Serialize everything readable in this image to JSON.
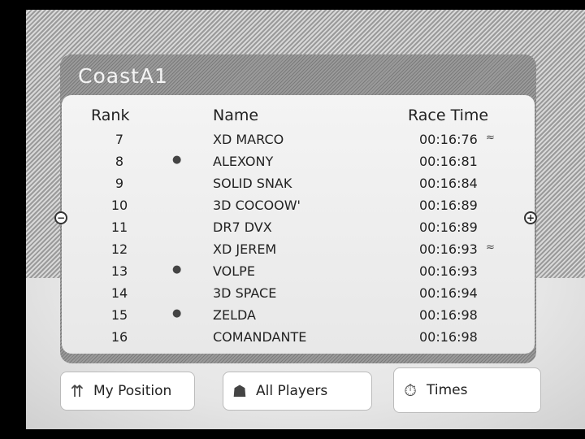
{
  "title": "CoastA1",
  "headers": {
    "rank": "Rank",
    "name": "Name",
    "time": "Race Time"
  },
  "rows": [
    {
      "rank": "7",
      "name": "XD MARCO",
      "time": "00:16:76",
      "icon_right": "kart-icon"
    },
    {
      "rank": "8",
      "name": "ALEXONY",
      "time": "00:16:81",
      "icon_left": "character-head-icon"
    },
    {
      "rank": "9",
      "name": "SOLID SNAK",
      "time": "00:16:84"
    },
    {
      "rank": "10",
      "name": "3D COCOOW'",
      "time": "00:16:89"
    },
    {
      "rank": "11",
      "name": "DR7 DVX",
      "time": "00:16:89"
    },
    {
      "rank": "12",
      "name": "XD JEREM",
      "time": "00:16:93",
      "icon_right": "kart-icon"
    },
    {
      "rank": "13",
      "name": "VOLPE",
      "time": "00:16:93",
      "icon_left": "character-head-icon"
    },
    {
      "rank": "14",
      "name": "3D SPACE",
      "time": "00:16:94"
    },
    {
      "rank": "15",
      "name": "ZELDA",
      "time": "00:16:98",
      "icon_left": "character-head-icon"
    },
    {
      "rank": "16",
      "name": "COMANDANTE",
      "time": "00:16:98"
    }
  ],
  "buttons": {
    "my_position": "My Position",
    "all_players": "All Players",
    "times": "Times"
  }
}
